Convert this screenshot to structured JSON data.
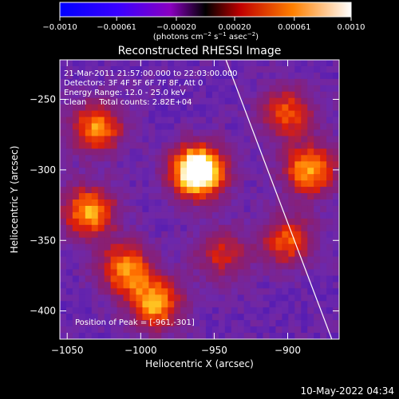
{
  "colorbar": {
    "ticks": [
      "−0.0010",
      "−0.00061",
      "−0.00020",
      "0.00020",
      "0.00061",
      "0.0010"
    ],
    "tick_values": [
      -0.001,
      -0.00061,
      -0.0002,
      0.0002,
      0.00061,
      0.001
    ],
    "range": [
      -0.001,
      0.001
    ],
    "unit_prefix": "(photons cm",
    "unit_exp1": "−2",
    "unit_mid": " s",
    "unit_exp2": "−1",
    "unit_mid2": " asec",
    "unit_exp3": "−2",
    "unit_suffix": ")"
  },
  "chart_data": {
    "type": "heatmap",
    "title": "Reconstructed RHESSI Image",
    "xlabel": "Heliocentric X (arcsec)",
    "ylabel": "Heliocentric Y (arcsec)",
    "xlim": [
      -1055,
      -865
    ],
    "ylim": [
      -420,
      -222
    ],
    "x_ticks": [
      -1050,
      -1000,
      -950,
      -900
    ],
    "x_tick_labels": [
      "−1050",
      "−1000",
      "−950",
      "−900"
    ],
    "y_ticks": [
      -400,
      -350,
      -300,
      -250
    ],
    "y_tick_labels": [
      "−400",
      "−350",
      "−300",
      "−250"
    ],
    "annotations": [
      "21-Mar-2011 21:57:00.000 to 22:03:00.000",
      "Detectors: 3F 4F 5F 6F 7F 8F, Att 0",
      "Energy Range: 12.0 - 25.0 keV",
      "Clean     Total counts: 2.82E+04"
    ],
    "peak_label": "Position of Peak = [-961,-301]",
    "peak": [
      -961,
      -301
    ],
    "limb_line": [
      [
        -942,
        -222
      ],
      [
        -870,
        -420
      ]
    ],
    "sources": [
      {
        "x": -961,
        "y": -301,
        "peak": 1.0
      },
      {
        "x": -1030,
        "y": -270,
        "peak": 0.55
      },
      {
        "x": -1035,
        "y": -330,
        "peak": 0.6
      },
      {
        "x": -1010,
        "y": -370,
        "peak": 0.55
      },
      {
        "x": -990,
        "y": -395,
        "peak": 0.6
      },
      {
        "x": -885,
        "y": -300,
        "peak": 0.6
      },
      {
        "x": -900,
        "y": -260,
        "peak": 0.45
      },
      {
        "x": -900,
        "y": -350,
        "peak": 0.45
      },
      {
        "x": -945,
        "y": -360,
        "peak": 0.35
      }
    ],
    "colors": {
      "low": "#1a00ff",
      "mid": "#6a2db0",
      "high": "#ff2a00",
      "top": "#ffffff"
    }
  },
  "timestamp": "10-May-2022 04:34"
}
